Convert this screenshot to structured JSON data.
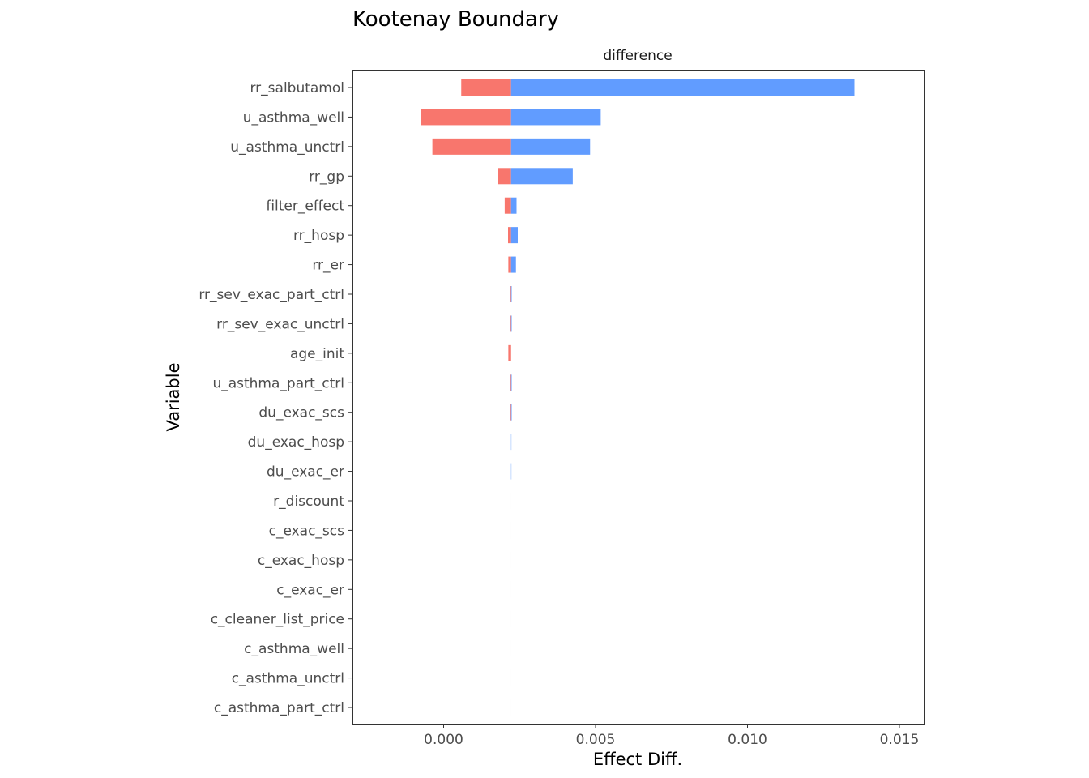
{
  "chart_data": {
    "type": "bar",
    "orientation": "horizontal",
    "title": "Kootenay Boundary",
    "facet_label": "difference",
    "xlabel": "Effect Diff.",
    "ylabel": "Variable",
    "xlim": [
      -0.003,
      0.0158
    ],
    "baseline": 0.00222,
    "x_ticks": [
      0.0,
      0.005,
      0.01,
      0.015
    ],
    "x_tick_labels": [
      "0.000",
      "0.005",
      "0.010",
      "0.015"
    ],
    "grid": false,
    "legend": "none",
    "colors": {
      "low": "#F8766D",
      "high": "#619CFF",
      "axis": "#333333"
    },
    "categories": [
      "rr_salbutamol",
      "u_asthma_well",
      "u_asthma_unctrl",
      "rr_gp",
      "filter_effect",
      "rr_hosp",
      "rr_er",
      "rr_sev_exac_part_ctrl",
      "rr_sev_exac_unctrl",
      "age_init",
      "u_asthma_part_ctrl",
      "du_exac_scs",
      "du_exac_hosp",
      "du_exac_er",
      "r_discount",
      "c_exac_scs",
      "c_exac_hosp",
      "c_exac_er",
      "c_cleaner_list_price",
      "c_asthma_well",
      "c_asthma_unctrl",
      "c_asthma_part_ctrl"
    ],
    "series": [
      {
        "name": "low",
        "values": [
          0.00058,
          -0.00075,
          -0.00037,
          0.00178,
          0.00201,
          0.00212,
          0.00213,
          0.0022,
          0.0022,
          0.00213,
          0.0022,
          0.0022,
          0.00222,
          0.00222,
          0.00222,
          0.00222,
          0.00222,
          0.00222,
          0.00222,
          0.00222,
          0.00222,
          0.00222
        ]
      },
      {
        "name": "high",
        "values": [
          0.01352,
          0.00517,
          0.00482,
          0.00425,
          0.0024,
          0.00244,
          0.00238,
          0.00224,
          0.00224,
          0.00222,
          0.00224,
          0.00224,
          0.00223,
          0.00223,
          0.00222,
          0.00222,
          0.00222,
          0.00222,
          0.00222,
          0.00222,
          0.00222,
          0.00222
        ]
      }
    ]
  }
}
